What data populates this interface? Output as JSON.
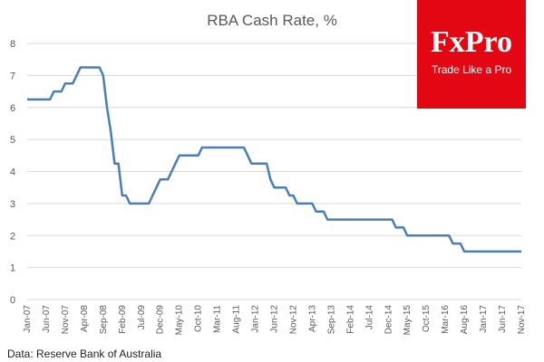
{
  "brand": {
    "name": "FxPro",
    "tagline": "Trade Like a Pro",
    "color": "#e30613"
  },
  "source_note": "Data: Reserve Bank of Australia",
  "chart_data": {
    "type": "line",
    "title": "RBA Cash Rate, %",
    "xlabel": "",
    "ylabel": "",
    "ylim": [
      0,
      8
    ],
    "yticks": [
      0,
      1,
      2,
      3,
      4,
      5,
      6,
      7,
      8
    ],
    "grid": true,
    "legend": "none",
    "line_color": "#4a7ebb",
    "x_tick_labels": [
      "Jan-07",
      "Jun-07",
      "Nov-07",
      "Apr-08",
      "Sep-08",
      "Feb-09",
      "Jul-09",
      "Dec-09",
      "May-10",
      "Oct-10",
      "Mar-11",
      "Aug-11",
      "Jan-12",
      "Jun-12",
      "Nov-12",
      "Apr-13",
      "Sep-13",
      "Feb-14",
      "Jul-14",
      "Dec-14",
      "May-15",
      "Oct-15",
      "Mar-16",
      "Aug-16",
      "Jan-17",
      "Jun-17",
      "Nov-17"
    ],
    "x_range": [
      "2007-01",
      "2017-11"
    ],
    "series": [
      {
        "points": [
          [
            "2007-01",
            6.25
          ],
          [
            "2007-07",
            6.25
          ],
          [
            "2007-08",
            6.5
          ],
          [
            "2007-10",
            6.5
          ],
          [
            "2007-11",
            6.75
          ],
          [
            "2008-01",
            6.75
          ],
          [
            "2008-02",
            7.0
          ],
          [
            "2008-03",
            7.25
          ],
          [
            "2008-08",
            7.25
          ],
          [
            "2008-09",
            7.0
          ],
          [
            "2008-10",
            6.0
          ],
          [
            "2008-11",
            5.25
          ],
          [
            "2008-12",
            4.25
          ],
          [
            "2009-01",
            4.25
          ],
          [
            "2009-02",
            3.25
          ],
          [
            "2009-03",
            3.25
          ],
          [
            "2009-04",
            3.0
          ],
          [
            "2009-09",
            3.0
          ],
          [
            "2009-10",
            3.25
          ],
          [
            "2009-11",
            3.5
          ],
          [
            "2009-12",
            3.75
          ],
          [
            "2010-02",
            3.75
          ],
          [
            "2010-03",
            4.0
          ],
          [
            "2010-04",
            4.25
          ],
          [
            "2010-05",
            4.5
          ],
          [
            "2010-10",
            4.5
          ],
          [
            "2010-11",
            4.75
          ],
          [
            "2011-10",
            4.75
          ],
          [
            "2011-11",
            4.5
          ],
          [
            "2011-12",
            4.25
          ],
          [
            "2012-04",
            4.25
          ],
          [
            "2012-05",
            3.75
          ],
          [
            "2012-06",
            3.5
          ],
          [
            "2012-09",
            3.5
          ],
          [
            "2012-10",
            3.25
          ],
          [
            "2012-11",
            3.25
          ],
          [
            "2012-12",
            3.0
          ],
          [
            "2013-04",
            3.0
          ],
          [
            "2013-05",
            2.75
          ],
          [
            "2013-07",
            2.75
          ],
          [
            "2013-08",
            2.5
          ],
          [
            "2015-01",
            2.5
          ],
          [
            "2015-02",
            2.25
          ],
          [
            "2015-04",
            2.25
          ],
          [
            "2015-05",
            2.0
          ],
          [
            "2016-04",
            2.0
          ],
          [
            "2016-05",
            1.75
          ],
          [
            "2016-07",
            1.75
          ],
          [
            "2016-08",
            1.5
          ],
          [
            "2017-11",
            1.5
          ]
        ]
      }
    ]
  }
}
